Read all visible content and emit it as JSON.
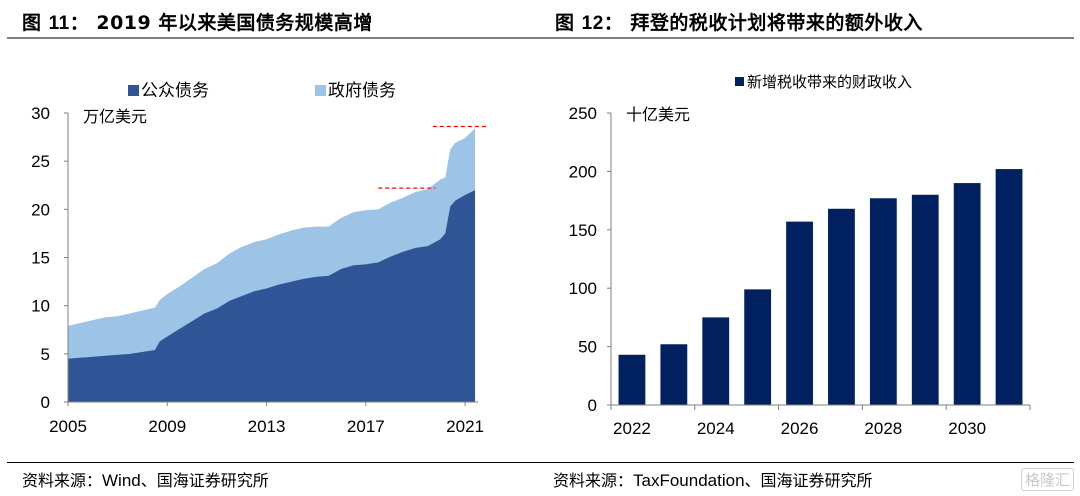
{
  "left": {
    "title_prefix": "图",
    "title_num": "11：",
    "title_text": "2019 年以来美国债务规模高增",
    "source_prefix": "资料来源：",
    "source_en": "Wind",
    "source_suffix": "、国海证券研究所"
  },
  "right": {
    "title_prefix": "图",
    "title_num": "12：",
    "title_text": "拜登的税收计划将带来的额外收入",
    "source_prefix": "资料来源：",
    "source_en": "TaxFoundation",
    "source_suffix": "、国海证券研究所"
  },
  "watermark": "格隆汇",
  "chart_data": [
    {
      "type": "area",
      "stacked": true,
      "title": "2019 年以来美国债务规模高增",
      "unit_label": "万亿美元",
      "xlabel": "",
      "ylabel": "万亿美元",
      "ylim": [
        0,
        30
      ],
      "yticks": [
        0,
        5,
        10,
        15,
        20,
        25,
        30
      ],
      "xticks": [
        "2005",
        "2009",
        "2013",
        "2017",
        "2021"
      ],
      "xlim": [
        2005,
        2021.6
      ],
      "legend": "top",
      "colors": {
        "public": "#2f5597",
        "government": "#9dc3e6",
        "reference_line": "#ff0000"
      },
      "x": [
        2005.0,
        2005.5,
        2006.0,
        2006.5,
        2007.0,
        2007.5,
        2008.0,
        2008.5,
        2008.7,
        2009.0,
        2009.5,
        2010.0,
        2010.5,
        2011.0,
        2011.5,
        2012.0,
        2012.5,
        2013.0,
        2013.5,
        2014.0,
        2014.5,
        2015.0,
        2015.5,
        2016.0,
        2016.5,
        2017.0,
        2017.5,
        2018.0,
        2018.5,
        2019.0,
        2019.5,
        2020.0,
        2020.2,
        2020.4,
        2020.6,
        2021.0,
        2021.4
      ],
      "series": [
        {
          "name": "公众债务",
          "values": [
            4.5,
            4.6,
            4.7,
            4.8,
            4.9,
            5.0,
            5.2,
            5.4,
            6.3,
            6.8,
            7.6,
            8.4,
            9.2,
            9.7,
            10.5,
            11.0,
            11.5,
            11.8,
            12.2,
            12.5,
            12.8,
            13.0,
            13.1,
            13.8,
            14.2,
            14.3,
            14.5,
            15.1,
            15.6,
            16.0,
            16.2,
            16.9,
            17.5,
            20.3,
            20.9,
            21.5,
            22.0
          ]
        },
        {
          "name": "政府债务",
          "values": [
            3.4,
            3.6,
            3.8,
            4.0,
            4.0,
            4.2,
            4.3,
            4.4,
            4.3,
            4.4,
            4.4,
            4.5,
            4.6,
            4.7,
            4.9,
            5.1,
            5.1,
            5.1,
            5.2,
            5.3,
            5.3,
            5.2,
            5.1,
            5.3,
            5.5,
            5.6,
            5.5,
            5.6,
            5.6,
            5.8,
            5.9,
            6.2,
            5.8,
            5.9,
            6.0,
            5.9,
            6.4
          ]
        }
      ],
      "reference_lines": [
        {
          "value": 22.2,
          "from": 2017.5,
          "to": 2019.8
        },
        {
          "value": 28.6,
          "from": 2019.7,
          "to": 2021.9
        }
      ]
    },
    {
      "type": "bar",
      "title": "拜登的税收计划将带来的额外收入",
      "unit_label": "十亿美元",
      "xlabel": "",
      "ylabel": "十亿美元",
      "ylim": [
        0,
        250
      ],
      "yticks": [
        0,
        50,
        100,
        150,
        200,
        250
      ],
      "legend": "top",
      "series_name": "新增税收带来的财政收入",
      "color": "#002060",
      "categories": [
        "2022",
        "2023",
        "2024",
        "2025",
        "2026",
        "2027",
        "2028",
        "2029",
        "2030",
        "2031"
      ],
      "xtick_labels": [
        "2022",
        "2024",
        "2026",
        "2028",
        "2030"
      ],
      "values": [
        43,
        52,
        75,
        99,
        157,
        168,
        177,
        180,
        190,
        202
      ]
    }
  ]
}
